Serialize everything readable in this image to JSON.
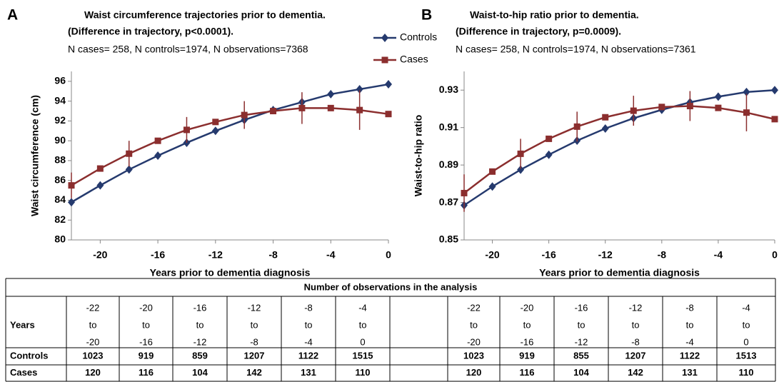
{
  "chart_data": [
    {
      "type": "line",
      "panel_label": "A",
      "title": [
        "Waist circumference trajectories prior to dementia.",
        "(Difference in trajectory, p<0.0001)."
      ],
      "subtitle": "N cases= 258, N controls=1974, N observations=7368",
      "x_label": "Years prior to dementia diagnosis",
      "y_label": "Waist circumference (cm)",
      "x": [
        -22,
        -20,
        -18,
        -16,
        -14,
        -12,
        -10,
        -8,
        -6,
        -4,
        -2,
        0
      ],
      "xlim": [
        -22,
        0
      ],
      "xticks": [
        -20,
        -16,
        -12,
        -8,
        -4,
        0
      ],
      "ylim": [
        80,
        97
      ],
      "yticks": [
        80,
        82,
        84,
        86,
        88,
        90,
        92,
        94,
        96
      ],
      "legend": "top-right",
      "series": [
        {
          "name": "Controls",
          "color": "#253a6e",
          "marker": "diamond",
          "values": [
            83.8,
            85.5,
            87.1,
            88.5,
            89.8,
            91.0,
            92.1,
            93.1,
            93.9,
            94.7,
            95.2,
            95.7
          ]
        },
        {
          "name": "Cases",
          "color": "#8b2e2e",
          "marker": "square",
          "values": [
            85.5,
            87.2,
            88.7,
            90.0,
            91.1,
            91.9,
            92.6,
            93.0,
            93.3,
            93.3,
            93.1,
            92.7
          ],
          "errors": [
            1.3,
            null,
            1.3,
            null,
            1.3,
            null,
            1.4,
            null,
            1.6,
            null,
            2.0,
            null
          ]
        }
      ]
    },
    {
      "type": "line",
      "panel_label": "B",
      "title": [
        "Waist-to-hip ratio prior to dementia.",
        "(Difference in trajectory, p=0.0009)."
      ],
      "subtitle": "N cases= 258, N controls=1974, N observations=7361",
      "x_label": "Years prior to dementia diagnosis",
      "y_label": "Waist-to-hip ratio",
      "x": [
        -22,
        -20,
        -18,
        -16,
        -14,
        -12,
        -10,
        -8,
        -6,
        -4,
        -2,
        0
      ],
      "xlim": [
        -22,
        0
      ],
      "xticks": [
        -20,
        -16,
        -12,
        -8,
        -4,
        0
      ],
      "ylim": [
        0.85,
        0.94
      ],
      "yticks": [
        0.85,
        0.87,
        0.89,
        0.91,
        0.93
      ],
      "series": [
        {
          "name": "Controls",
          "color": "#253a6e",
          "marker": "diamond",
          "values": [
            0.8685,
            0.8785,
            0.8875,
            0.8955,
            0.903,
            0.9095,
            0.915,
            0.9195,
            0.9235,
            0.9265,
            0.929,
            0.93
          ]
        },
        {
          "name": "Cases",
          "color": "#8b2e2e",
          "marker": "square",
          "values": [
            0.875,
            0.8865,
            0.896,
            0.904,
            0.9105,
            0.9155,
            0.919,
            0.921,
            0.9215,
            0.9205,
            0.918,
            0.9145
          ],
          "errors": [
            0.01,
            null,
            0.008,
            null,
            0.008,
            null,
            0.008,
            null,
            0.008,
            null,
            0.01,
            null
          ]
        }
      ]
    }
  ],
  "table": {
    "title": "Number of observations in the analysis",
    "years_label": "Years",
    "row_labels": [
      "Controls",
      "Cases"
    ],
    "groups": [
      {
        "periods": [
          [
            "-22",
            "to",
            "-20"
          ],
          [
            "-20",
            "to",
            "-16"
          ],
          [
            "-16",
            "to",
            "-12"
          ],
          [
            "-12",
            "to",
            "-8"
          ],
          [
            "-8",
            "to",
            "-4"
          ],
          [
            "-4",
            "to",
            "0"
          ]
        ],
        "counts": [
          [
            1023,
            919,
            859,
            1207,
            1122,
            1515
          ],
          [
            120,
            116,
            104,
            142,
            131,
            110
          ]
        ]
      },
      {
        "periods": [
          [
            "-22",
            "to",
            "-20"
          ],
          [
            "-20",
            "to",
            "-16"
          ],
          [
            "-16",
            "to",
            "-12"
          ],
          [
            "-12",
            "to",
            "-8"
          ],
          [
            "-8",
            "to",
            "-4"
          ],
          [
            "-4",
            "to",
            "0"
          ]
        ],
        "counts": [
          [
            1023,
            919,
            855,
            1207,
            1122,
            1513
          ],
          [
            120,
            116,
            104,
            142,
            131,
            110
          ]
        ]
      }
    ]
  }
}
